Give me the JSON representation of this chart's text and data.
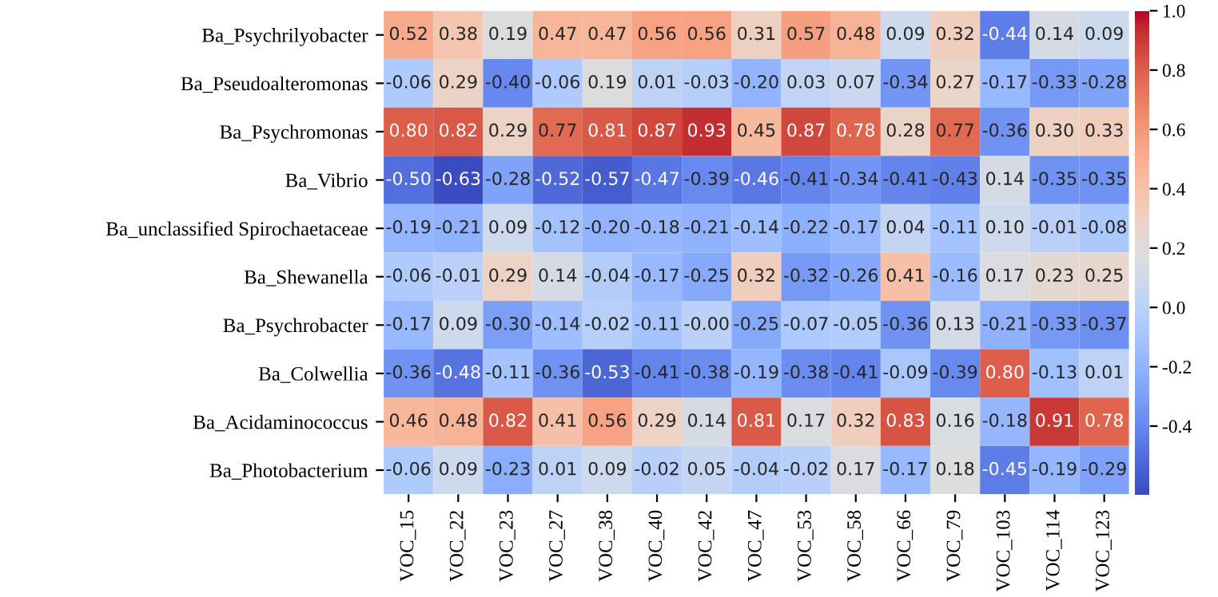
{
  "chart_data": {
    "type": "heatmap",
    "categories": [
      "VOC_15",
      "VOC_22",
      "VOC_23",
      "VOC_27",
      "VOC_38",
      "VOC_40",
      "VOC_42",
      "VOC_47",
      "VOC_53",
      "VOC_58",
      "VOC_66",
      "VOC_79",
      "VOC_103",
      "VOC_114",
      "VOC_123"
    ],
    "y_categories": [
      "Ba_Psychrilyobacter",
      "Ba_Pseudoalteromonas",
      "Ba_Psychromonas",
      "Ba_Vibrio",
      "Ba_unclassified Spirochaetaceae",
      "Ba_Shewanella",
      "Ba_Psychrobacter",
      "Ba_Colwellia",
      "Ba_Acidaminococcus",
      "Ba_Photobacterium"
    ],
    "cells": [
      [
        0.52,
        0.38,
        0.19,
        0.47,
        0.47,
        0.56,
        0.56,
        0.31,
        0.57,
        0.48,
        0.09,
        0.32,
        -0.44,
        0.14,
        0.09
      ],
      [
        -0.06,
        0.29,
        -0.4,
        -0.06,
        0.19,
        0.01,
        -0.03,
        -0.2,
        0.03,
        0.07,
        -0.34,
        0.27,
        -0.17,
        -0.33,
        -0.28
      ],
      [
        0.8,
        0.82,
        0.29,
        0.77,
        0.81,
        0.87,
        0.93,
        0.45,
        0.87,
        0.78,
        0.28,
        0.77,
        -0.36,
        0.3,
        0.33
      ],
      [
        -0.5,
        -0.63,
        -0.28,
        -0.52,
        -0.57,
        -0.47,
        -0.39,
        -0.46,
        -0.41,
        -0.34,
        -0.41,
        -0.43,
        0.14,
        -0.35,
        -0.35
      ],
      [
        -0.19,
        -0.21,
        0.09,
        -0.12,
        -0.2,
        -0.18,
        -0.21,
        -0.14,
        -0.22,
        -0.17,
        0.04,
        -0.11,
        0.1,
        -0.01,
        -0.08
      ],
      [
        -0.06,
        -0.01,
        0.29,
        0.14,
        -0.04,
        -0.17,
        -0.25,
        0.32,
        -0.32,
        -0.26,
        0.41,
        -0.16,
        0.17,
        0.23,
        0.25
      ],
      [
        -0.17,
        0.09,
        -0.3,
        -0.14,
        -0.02,
        -0.11,
        -0.0,
        -0.25,
        -0.07,
        -0.05,
        -0.36,
        0.13,
        -0.21,
        -0.33,
        -0.37
      ],
      [
        -0.36,
        -0.48,
        -0.11,
        -0.36,
        -0.53,
        -0.41,
        -0.38,
        -0.19,
        -0.38,
        -0.41,
        -0.09,
        -0.39,
        0.8,
        -0.13,
        0.01
      ],
      [
        0.46,
        0.48,
        0.82,
        0.41,
        0.56,
        0.29,
        0.14,
        0.81,
        0.17,
        0.32,
        0.83,
        0.16,
        -0.18,
        0.91,
        0.78
      ],
      [
        -0.06,
        0.09,
        -0.23,
        0.01,
        0.09,
        -0.02,
        0.05,
        -0.04,
        -0.02,
        0.17,
        -0.17,
        0.18,
        -0.45,
        -0.19,
        -0.29
      ]
    ],
    "cell_labels": [
      [
        "0.52",
        "0.38",
        "0.19",
        "0.47",
        "0.47",
        "0.56",
        "0.56",
        "0.31",
        "0.57",
        "0.48",
        "0.09",
        "0.32",
        "-0.44",
        "0.14",
        "0.09"
      ],
      [
        "-0.06",
        "0.29",
        "-0.40",
        "-0.06",
        "0.19",
        "0.01",
        "-0.03",
        "-0.20",
        "0.03",
        "0.07",
        "-0.34",
        "0.27",
        "-0.17",
        "-0.33",
        "-0.28"
      ],
      [
        "0.80",
        "0.82",
        "0.29",
        "0.77",
        "0.81",
        "0.87",
        "0.93",
        "0.45",
        "0.87",
        "0.78",
        "0.28",
        "0.77",
        "-0.36",
        "0.30",
        "0.33"
      ],
      [
        "-0.50",
        "-0.63",
        "-0.28",
        "-0.52",
        "-0.57",
        "-0.47",
        "-0.39",
        "-0.46",
        "-0.41",
        "-0.34",
        "-0.41",
        "-0.43",
        "0.14",
        "-0.35",
        "-0.35"
      ],
      [
        "-0.19",
        "-0.21",
        "0.09",
        "-0.12",
        "-0.20",
        "-0.18",
        "-0.21",
        "-0.14",
        "-0.22",
        "-0.17",
        "0.04",
        "-0.11",
        "0.10",
        "-0.01",
        "-0.08"
      ],
      [
        "-0.06",
        "-0.01",
        "0.29",
        "0.14",
        "-0.04",
        "-0.17",
        "-0.25",
        "0.32",
        "-0.32",
        "-0.26",
        "0.41",
        "-0.16",
        "0.17",
        "0.23",
        "0.25"
      ],
      [
        "-0.17",
        "0.09",
        "-0.30",
        "-0.14",
        "-0.02",
        "-0.11",
        "-0.00",
        "-0.25",
        "-0.07",
        "-0.05",
        "-0.36",
        "0.13",
        "-0.21",
        "-0.33",
        "-0.37"
      ],
      [
        "-0.36",
        "-0.48",
        "-0.11",
        "-0.36",
        "-0.53",
        "-0.41",
        "-0.38",
        "-0.19",
        "-0.38",
        "-0.41",
        "-0.09",
        "-0.39",
        "0.80",
        "-0.13",
        "0.01"
      ],
      [
        "0.46",
        "0.48",
        "0.82",
        "0.41",
        "0.56",
        "0.29",
        "0.14",
        "0.81",
        "0.17",
        "0.32",
        "0.83",
        "0.16",
        "-0.18",
        "0.91",
        "0.78"
      ],
      [
        "-0.06",
        "0.09",
        "-0.23",
        "0.01",
        "0.09",
        "-0.02",
        "0.05",
        "-0.04",
        "-0.02",
        "0.17",
        "-0.17",
        "0.18",
        "-0.45",
        "-0.19",
        "-0.29"
      ]
    ],
    "clim": [
      -0.63,
      1.0
    ],
    "cticks": [
      -0.4,
      -0.2,
      {
        "value": 0.0,
        "label": "0.0"
      },
      0.2,
      0.4,
      0.6,
      0.8,
      {
        "value": 1.0,
        "label": "1.0"
      }
    ]
  }
}
